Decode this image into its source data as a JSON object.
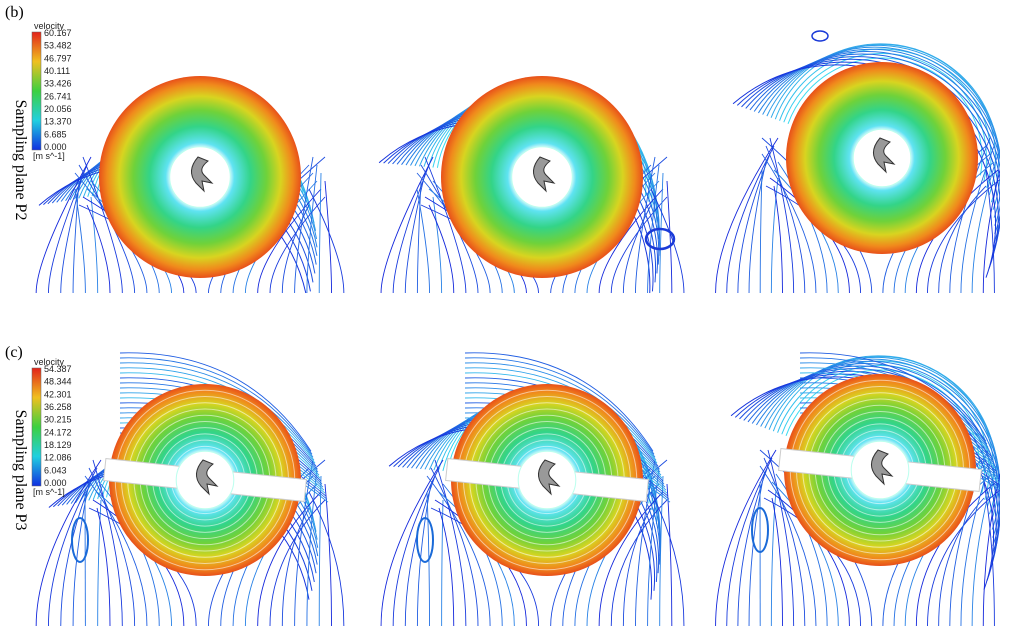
{
  "rows": [
    {
      "label": "(b)",
      "plane": "Sampling plane P2",
      "legend": {
        "title": "velocity",
        "ticks": [
          "60.167",
          "53.482",
          "46.797",
          "40.111",
          "33.426",
          "26.741",
          "20.056",
          "13.370",
          "6.685",
          "0.000"
        ],
        "unit": "[m s^-1]"
      }
    },
    {
      "label": "(c)",
      "plane": "Sampling plane P3",
      "legend": {
        "title": "velocity",
        "ticks": [
          "54.387",
          "48.344",
          "42.301",
          "36.258",
          "30.215",
          "24.172",
          "18.129",
          "12.086",
          "6.043",
          "0.000"
        ],
        "unit": "[m s^-1]"
      }
    }
  ]
}
